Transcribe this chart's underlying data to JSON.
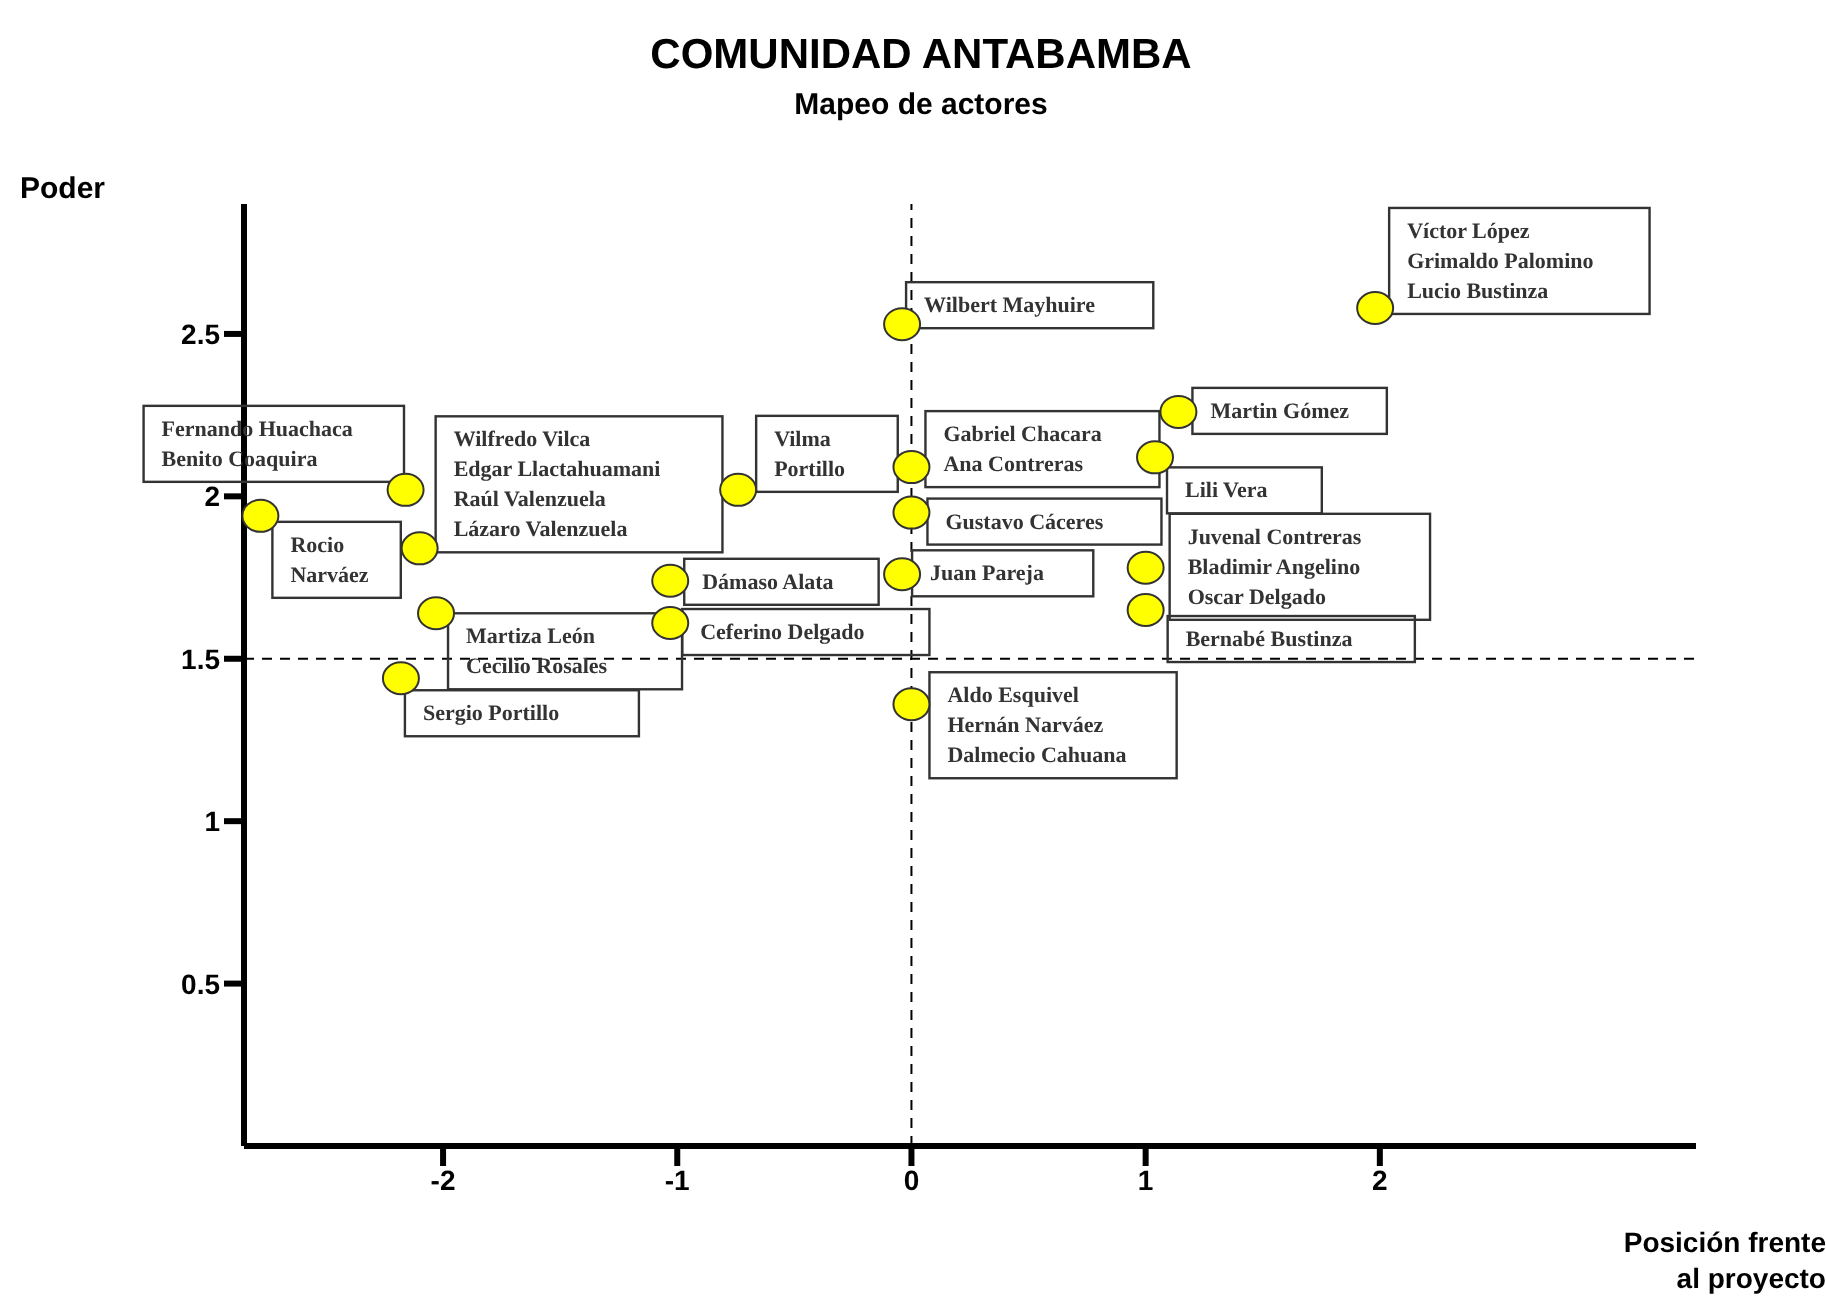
{
  "chart_data": {
    "type": "scatter",
    "title": "COMUNIDAD ANTABAMBA",
    "subtitle": "Mapeo de actores",
    "xlabel": "Posición frente\nal proyecto",
    "ylabel": "Poder",
    "x": [
      -2.78,
      -2.16,
      -2.1,
      -2.03,
      -2.18,
      -0.74,
      -1.03,
      -1.03,
      -0.04,
      0,
      0,
      -0.04,
      0,
      1.98,
      1.14,
      1.04,
      1.0,
      1.0
    ],
    "values": [
      1.94,
      2.02,
      1.84,
      1.64,
      1.44,
      2.02,
      1.74,
      1.61,
      2.53,
      2.09,
      1.95,
      1.76,
      1.36,
      2.58,
      2.26,
      2.12,
      1.78,
      1.65
    ],
    "value_labels": [
      "Rocio\nNarváez",
      "Fernando Huachaca\nBenito Coaquira",
      "Wilfredo Vilca\nEdgar Llactahuamani\nRaúl Valenzuela\nLázaro Valenzuela",
      "Martiza León\nCecilio Rosales",
      "Sergio Portillo",
      "Vilma\nPortillo",
      "Dámaso Alata",
      "Ceferino Delgado",
      "Wilbert Mayhuire",
      "Gabriel Chacara\nAna Contreras",
      "Gustavo Cáceres",
      "Juan Pareja",
      "Aldo Esquivel\nHernán Narváez\nDalmecio Cahuana",
      "Víctor López\nGrimaldo Palomino\nLucio Bustinza",
      "Martin Gómez",
      "Lili Vera",
      "Juvenal Contreras\nBladimir Angelino\nOscar Delgado",
      "Bernabé Bustinza"
    ],
    "color": "#ffff00",
    "marker": "circle",
    "xlim": [
      -2.85,
      3.35
    ],
    "xticks": [
      -2,
      -1,
      0,
      1,
      2
    ],
    "ylim": [
      0,
      2.9
    ],
    "yticks": [
      0.5,
      1,
      1.5,
      2,
      2.5
    ],
    "ref_lines": [
      {
        "axis": "x",
        "value": 0,
        "line_style": "dashed"
      },
      {
        "axis": "y",
        "value": 1.5,
        "line_style": "dashed"
      }
    ],
    "grid": false,
    "legend": false
  }
}
